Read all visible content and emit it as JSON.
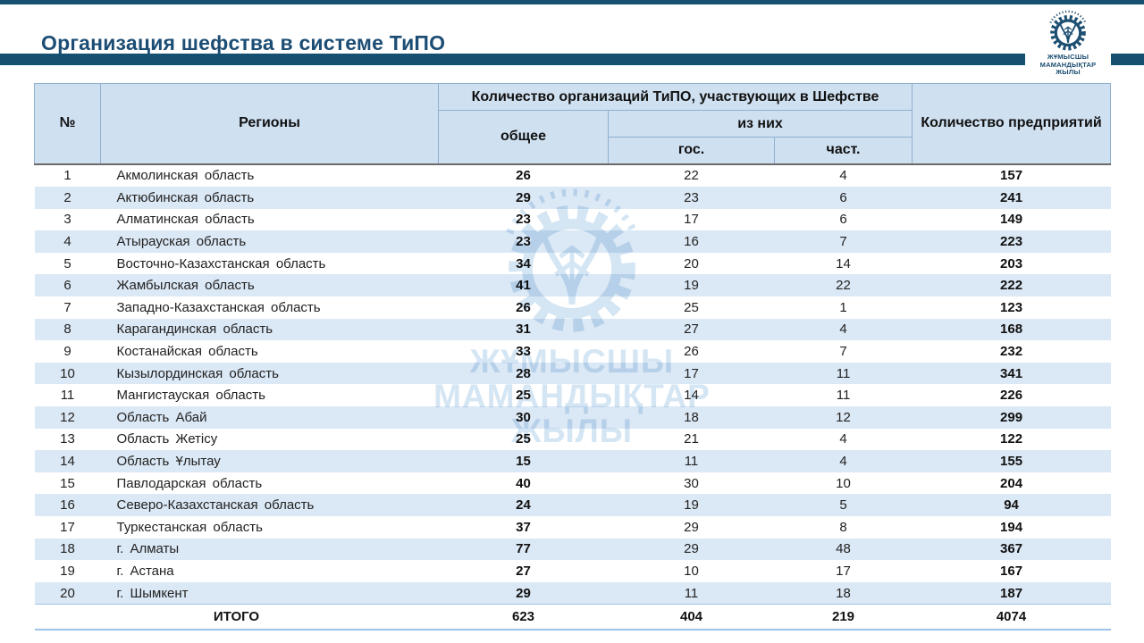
{
  "title": "Организация шефства в системе ТиПО",
  "logo": {
    "name": "gear-wheat-emblem",
    "line1": "ЖҰМЫСШЫ",
    "line2": "МАМАНДЫҚТАР",
    "line3": "ЖЫЛЫ"
  },
  "watermark": {
    "line1": "ЖҰМЫСШЫ",
    "line2": "МАМАНДЫҚТАР",
    "line3": "ЖЫЛЫ"
  },
  "colors": {
    "accent_bar": "#165070",
    "title_text": "#1c4d74",
    "header_bg": "#cfe0f1",
    "row_alt_bg": "#dbe8f5",
    "header_border": "#8fb0cf",
    "total_border": "#9dc3e6",
    "watermark": "#a9cbe8"
  },
  "table": {
    "headers": {
      "num": "№",
      "region": "Регионы",
      "group": "Количество организаций ТиПО, участвующих в Шефстве",
      "total": "общее",
      "of_them": "из них",
      "state": "гос.",
      "private": "част.",
      "enterprises": "Количество предприятий"
    },
    "rows": [
      {
        "num": "1",
        "region": "Акмолинская область",
        "total": "26",
        "state": "22",
        "private": "4",
        "enterprises": "157"
      },
      {
        "num": "2",
        "region": "Актюбинская область",
        "total": "29",
        "state": "23",
        "private": "6",
        "enterprises": "241"
      },
      {
        "num": "3",
        "region": "Алматинская область",
        "total": "23",
        "state": "17",
        "private": "6",
        "enterprises": "149"
      },
      {
        "num": "4",
        "region": "Атырауская область",
        "total": "23",
        "state": "16",
        "private": "7",
        "enterprises": "223"
      },
      {
        "num": "5",
        "region": "Восточно-Казахстанская область",
        "total": "34",
        "state": "20",
        "private": "14",
        "enterprises": "203"
      },
      {
        "num": "6",
        "region": "Жамбылская область",
        "total": "41",
        "state": "19",
        "private": "22",
        "enterprises": "222"
      },
      {
        "num": "7",
        "region": "Западно-Казахстанская область",
        "total": "26",
        "state": "25",
        "private": "1",
        "enterprises": "123"
      },
      {
        "num": "8",
        "region": "Карагандинская область",
        "total": "31",
        "state": "27",
        "private": "4",
        "enterprises": "168"
      },
      {
        "num": "9",
        "region": "Костанайская область",
        "total": "33",
        "state": "26",
        "private": "7",
        "enterprises": "232"
      },
      {
        "num": "10",
        "region": "Кызылординская область",
        "total": "28",
        "state": "17",
        "private": "11",
        "enterprises": "341"
      },
      {
        "num": "11",
        "region": "Мангистауская область",
        "total": "25",
        "state": "14",
        "private": "11",
        "enterprises": "226"
      },
      {
        "num": "12",
        "region": "Область Абай",
        "total": "30",
        "state": "18",
        "private": "12",
        "enterprises": "299"
      },
      {
        "num": "13",
        "region": "Область Жетісу",
        "total": "25",
        "state": "21",
        "private": "4",
        "enterprises": "122"
      },
      {
        "num": "14",
        "region": "Область Ұлытау",
        "total": "15",
        "state": "11",
        "private": "4",
        "enterprises": "155"
      },
      {
        "num": "15",
        "region": "Павлодарская область",
        "total": "40",
        "state": "30",
        "private": "10",
        "enterprises": "204"
      },
      {
        "num": "16",
        "region": "Северо-Казахстанская область",
        "total": "24",
        "state": "19",
        "private": "5",
        "enterprises": "94"
      },
      {
        "num": "17",
        "region": "Туркестанская область",
        "total": "37",
        "state": "29",
        "private": "8",
        "enterprises": "194"
      },
      {
        "num": "18",
        "region": "г. Алматы",
        "total": "77",
        "state": "29",
        "private": "48",
        "enterprises": "367"
      },
      {
        "num": "19",
        "region": "г. Астана",
        "total": "27",
        "state": "10",
        "private": "17",
        "enterprises": "167"
      },
      {
        "num": "20",
        "region": "г. Шымкент",
        "total": "29",
        "state": "11",
        "private": "18",
        "enterprises": "187"
      }
    ],
    "footer": {
      "label": "ИТОГО",
      "total": "623",
      "state": "404",
      "private": "219",
      "enterprises": "4074"
    }
  }
}
